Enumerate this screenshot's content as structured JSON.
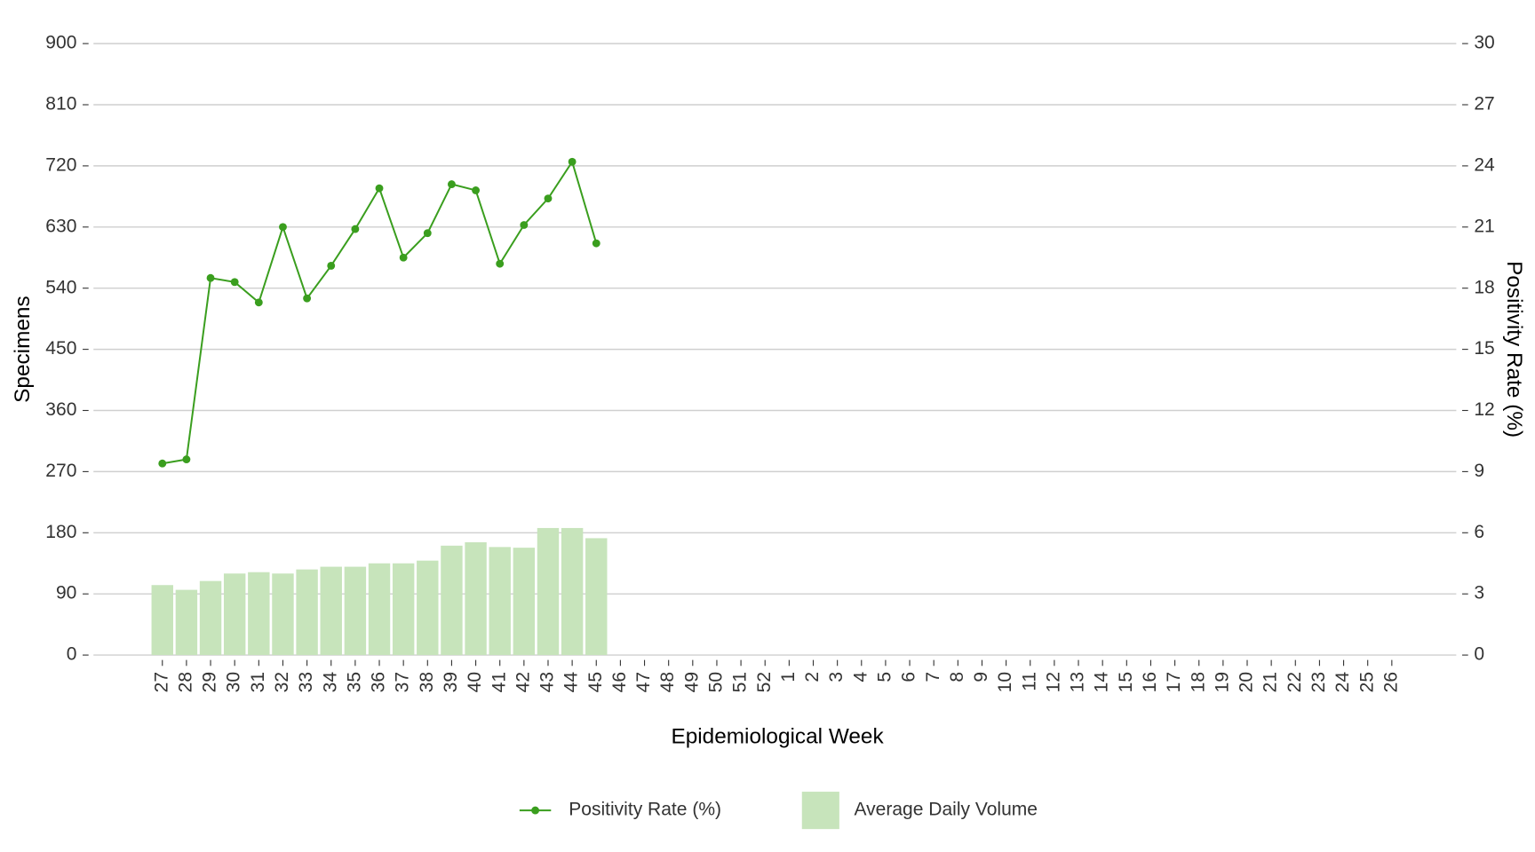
{
  "chart_data": {
    "type": "bar",
    "xlabel": "Epidemiological Week",
    "ylabel": "Specimens",
    "y2label": "Positivity Rate (%)",
    "categories": [
      "27",
      "28",
      "29",
      "30",
      "31",
      "32",
      "33",
      "34",
      "35",
      "36",
      "37",
      "38",
      "39",
      "40",
      "41",
      "42",
      "43",
      "44",
      "45",
      "46",
      "47",
      "48",
      "49",
      "50",
      "51",
      "52",
      "1",
      "2",
      "3",
      "4",
      "5",
      "6",
      "7",
      "8",
      "9",
      "10",
      "11",
      "12",
      "13",
      "14",
      "15",
      "16",
      "17",
      "18",
      "19",
      "20",
      "21",
      "22",
      "23",
      "24",
      "25",
      "26"
    ],
    "series": [
      {
        "name": "Positivity Rate (%)",
        "type": "line",
        "axis": "y2",
        "color": "#3a9e1e",
        "values": [
          9.4,
          9.6,
          18.5,
          18.3,
          17.3,
          21.0,
          17.5,
          19.1,
          20.9,
          22.9,
          19.5,
          20.7,
          23.1,
          22.8,
          19.2,
          21.1,
          22.4,
          24.2,
          20.2,
          null,
          null,
          null,
          null,
          null,
          null,
          null,
          null,
          null,
          null,
          null,
          null,
          null,
          null,
          null,
          null,
          null,
          null,
          null,
          null,
          null,
          null,
          null,
          null,
          null,
          null,
          null,
          null,
          null,
          null,
          null,
          null,
          null
        ]
      },
      {
        "name": "Average Daily Volume",
        "type": "bar",
        "axis": "y",
        "color": "#c7e4bb",
        "values": [
          103,
          96,
          109,
          120,
          122,
          120,
          126,
          130,
          130,
          135,
          135,
          139,
          161,
          166,
          159,
          158,
          187,
          187,
          172,
          null,
          null,
          null,
          null,
          null,
          null,
          null,
          null,
          null,
          null,
          null,
          null,
          null,
          null,
          null,
          null,
          null,
          null,
          null,
          null,
          null,
          null,
          null,
          null,
          null,
          null,
          null,
          null,
          null,
          null,
          null,
          null,
          null
        ]
      }
    ],
    "ylim": [
      0,
      900
    ],
    "yticks": [
      0,
      90,
      180,
      270,
      360,
      450,
      540,
      630,
      720,
      810,
      900
    ],
    "y2lim": [
      0,
      30
    ],
    "y2ticks": [
      0,
      3,
      6,
      9,
      12,
      15,
      18,
      21,
      24,
      27,
      30
    ],
    "grid": true,
    "legend": "bottom"
  }
}
